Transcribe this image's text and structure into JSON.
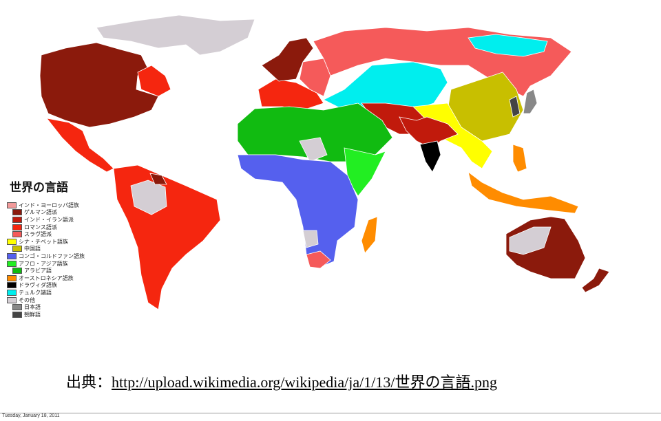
{
  "map": {
    "title": "世界の言語",
    "legend": [
      {
        "label": "インド・ヨーロッパ語族",
        "color": "#f29b9b",
        "sub": false
      },
      {
        "label": "ゲルマン語派",
        "color": "#8b1a0c",
        "sub": true
      },
      {
        "label": "インド・イラン語派",
        "color": "#c11a0c",
        "sub": true
      },
      {
        "label": "ロマンス語派",
        "color": "#f5260f",
        "sub": true
      },
      {
        "label": "スラヴ語派",
        "color": "#f55a5a",
        "sub": true
      },
      {
        "label": "シナ・チベット語族",
        "color": "#ffff00",
        "sub": false
      },
      {
        "label": "中国語",
        "color": "#c8bf00",
        "sub": true
      },
      {
        "label": "コンゴ・コルドファン語族",
        "color": "#5560ee",
        "sub": false
      },
      {
        "label": "アフロ・アジア語族",
        "color": "#22ee22",
        "sub": false
      },
      {
        "label": "アラビア語",
        "color": "#11bb11",
        "sub": true
      },
      {
        "label": "オーストロネシア語族",
        "color": "#ff8c00",
        "sub": false
      },
      {
        "label": "ドラヴィダ語族",
        "color": "#000000",
        "sub": false
      },
      {
        "label": "テュルク諸語",
        "color": "#00eeee",
        "sub": false
      },
      {
        "label": "その他",
        "color": "#d4ced4",
        "sub": false
      },
      {
        "label": "日本語",
        "color": "#888888",
        "sub": true
      },
      {
        "label": "朝鮮語",
        "color": "#444444",
        "sub": true
      }
    ]
  },
  "source": {
    "prefix": "出典：",
    "link": "http://upload.wikimedia.org/wikipedia/ja/1/13/世界の言語.png"
  },
  "footer": {
    "date": "Tuesday, January 18, 2011"
  }
}
